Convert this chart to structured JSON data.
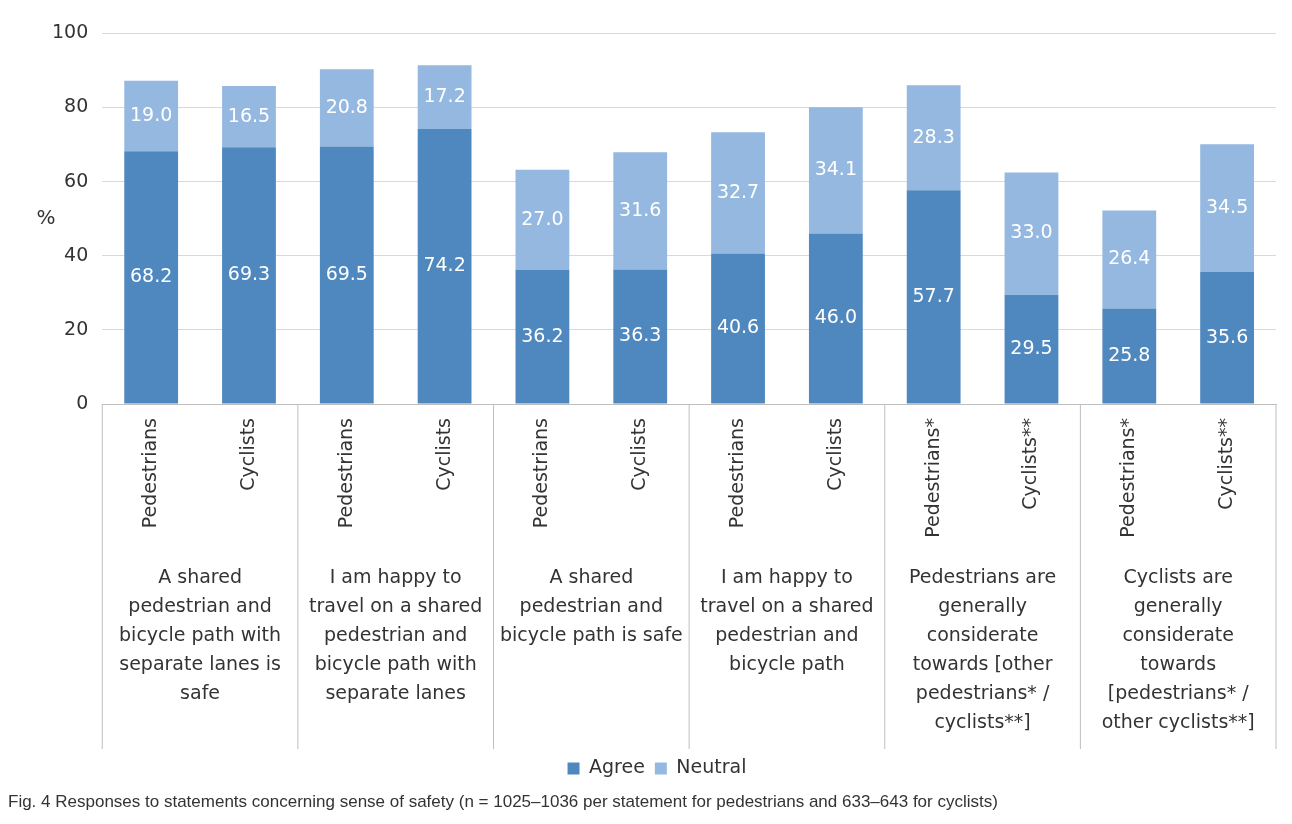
{
  "chart_data": {
    "type": "bar",
    "stacked": true,
    "ylabel": "%",
    "categories": [
      "Pedestrians",
      "Cyclists",
      "Pedestrians",
      "Cyclists",
      "Pedestrians",
      "Cyclists",
      "Pedestrians",
      "Cyclists",
      "Pedestrians*",
      "Cyclists**",
      "Pedestrians*",
      "Cyclists**"
    ],
    "series": [
      {
        "name": "Agree",
        "color": "#4f88bf",
        "values": [
          68.2,
          69.3,
          69.5,
          74.2,
          36.2,
          36.3,
          40.6,
          46.0,
          57.7,
          29.5,
          25.8,
          35.6
        ],
        "value_labels": [
          "68.2",
          "69.3",
          "69.5",
          "74.2",
          "36.2",
          "36.3",
          "40.6",
          "46.0",
          "57.7",
          "29.5",
          "25.8",
          "35.6"
        ]
      },
      {
        "name": "Neutral",
        "color": "#95b8e0",
        "values": [
          19.0,
          16.5,
          20.8,
          17.2,
          27.0,
          31.6,
          32.7,
          34.1,
          28.3,
          33.0,
          26.4,
          34.5
        ],
        "value_labels": [
          "19.0",
          "16.5",
          "20.8",
          "17.2",
          "27.0",
          "31.6",
          "32.7",
          "34.1",
          "28.3",
          "33.0",
          "26.4",
          "34.5"
        ]
      }
    ],
    "ylim": [
      0,
      100
    ],
    "yticks": [
      0,
      20,
      40,
      60,
      80,
      100
    ],
    "grid": "y",
    "legend": "bottom",
    "annotations": [
      "A shared pedestrian and bicycle path with separate lanes is safe",
      "I am happy to travel on a shared pedestrian and bicycle path with separate lanes",
      "A shared pedestrian and bicycle path is safe",
      "I am happy to travel on a shared pedestrian and bicycle path",
      "Pedestrians are generally considerate towards [other pedestrians* / cyclists**]",
      "Cyclists are generally considerate towards [pedestrians* / other cyclists**]",
      "Fig. 4 Responses to statements concerning sense of safety (n = 1025–1036 per statement for pedestrians and 633–643 for cyclists)"
    ]
  }
}
